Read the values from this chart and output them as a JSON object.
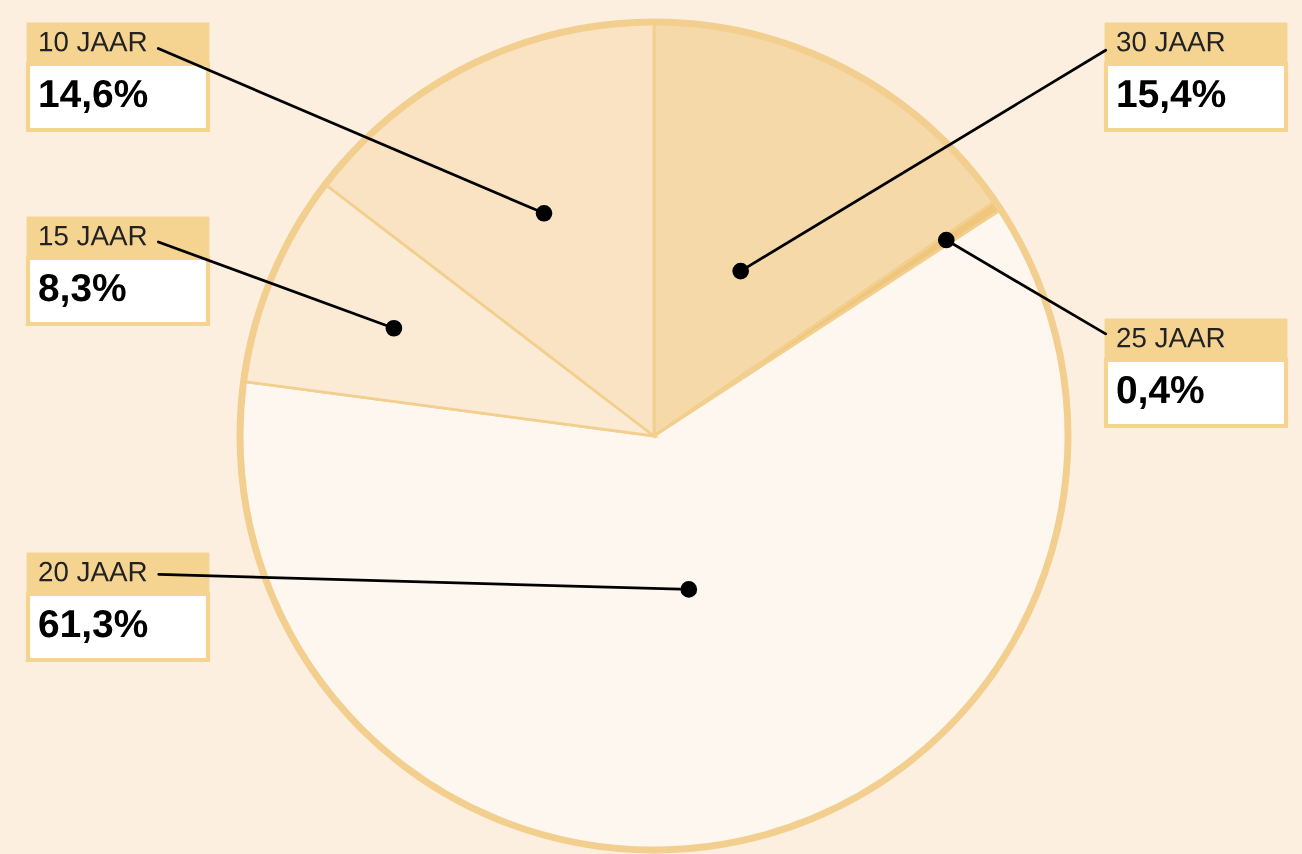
{
  "chart_data": {
    "type": "pie",
    "categories": [
      "30 JAAR",
      "25 JAAR",
      "20 JAAR",
      "15 JAAR",
      "10 JAAR"
    ],
    "values": [
      15.4,
      0.4,
      61.3,
      8.3,
      14.6
    ],
    "value_labels": [
      "15,4%",
      "0,4%",
      "61,3%",
      "8,3%",
      "14,6%"
    ],
    "colors": [
      "#f6d9a8",
      "#f0c57c",
      "#fef7ef",
      "#fbebd5",
      "#f9e3c2"
    ],
    "legend": false
  }
}
